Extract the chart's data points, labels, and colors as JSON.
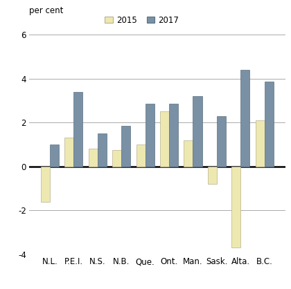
{
  "provinces": [
    "N.L.",
    "P.E.I.",
    "N.S.",
    "N.B.",
    "Que.",
    "Ont.",
    "Man.",
    "Sask.",
    "Alta.",
    "B.C."
  ],
  "values_2015": [
    -1.6,
    1.3,
    0.8,
    0.75,
    1.0,
    2.5,
    1.2,
    -0.8,
    -3.7,
    2.1
  ],
  "values_2017": [
    1.0,
    3.4,
    1.5,
    1.85,
    2.85,
    2.85,
    3.2,
    2.3,
    4.4,
    3.85
  ],
  "color_2015": "#ede8b0",
  "color_2017": "#7a90a4",
  "ylim": [
    -4,
    6
  ],
  "yticks": [
    -4,
    -2,
    0,
    2,
    4,
    6
  ],
  "ylabel": "per cent",
  "legend_labels": [
    "2015",
    "2017"
  ],
  "bar_width": 0.38,
  "background_color": "#ffffff",
  "grid_color": "#aaaaaa",
  "tick_fontsize": 8.5
}
